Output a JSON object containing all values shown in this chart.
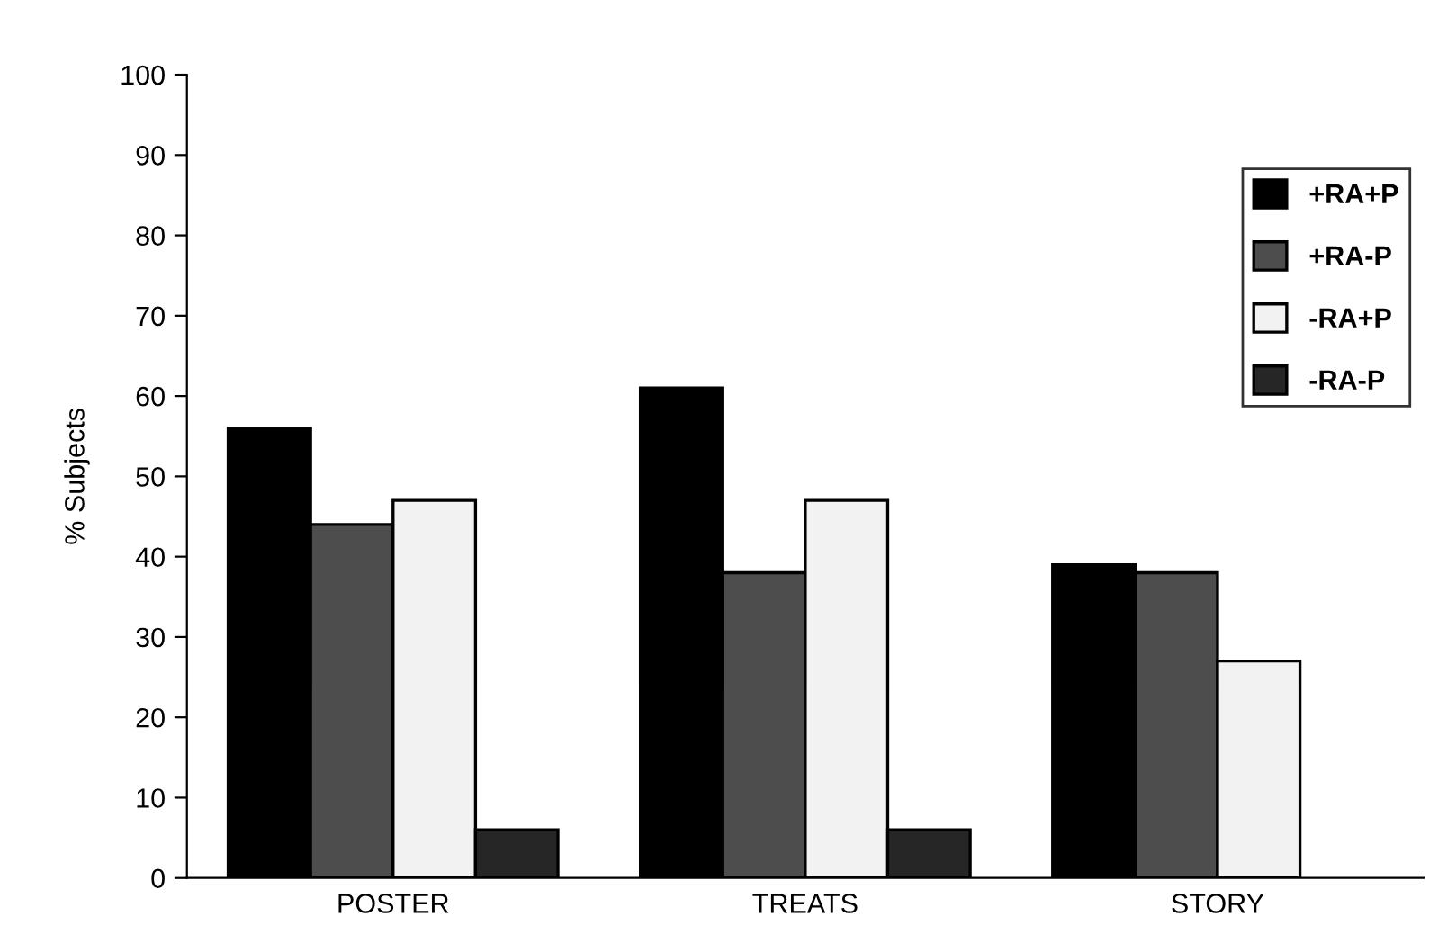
{
  "chart_data": {
    "type": "bar",
    "ylabel": "% Subjects",
    "categories": [
      "POSTER",
      "TREATS",
      "STORY"
    ],
    "series": [
      {
        "name": "+RA+P",
        "color": "#000000",
        "values": [
          56,
          61,
          39
        ]
      },
      {
        "name": "+RA-P",
        "color": "#4d4d4d",
        "values": [
          44,
          38,
          38
        ]
      },
      {
        "name": "-RA+P",
        "color": "#f2f2f2",
        "values": [
          47,
          47,
          27
        ]
      },
      {
        "name": "-RA-P",
        "color": "#262626",
        "values": [
          6,
          6,
          null
        ]
      }
    ],
    "ylim": [
      0,
      100
    ],
    "yticks": [
      0,
      10,
      20,
      30,
      40,
      50,
      60,
      70,
      80,
      90,
      100
    ],
    "grid": false,
    "legend": "top right"
  }
}
